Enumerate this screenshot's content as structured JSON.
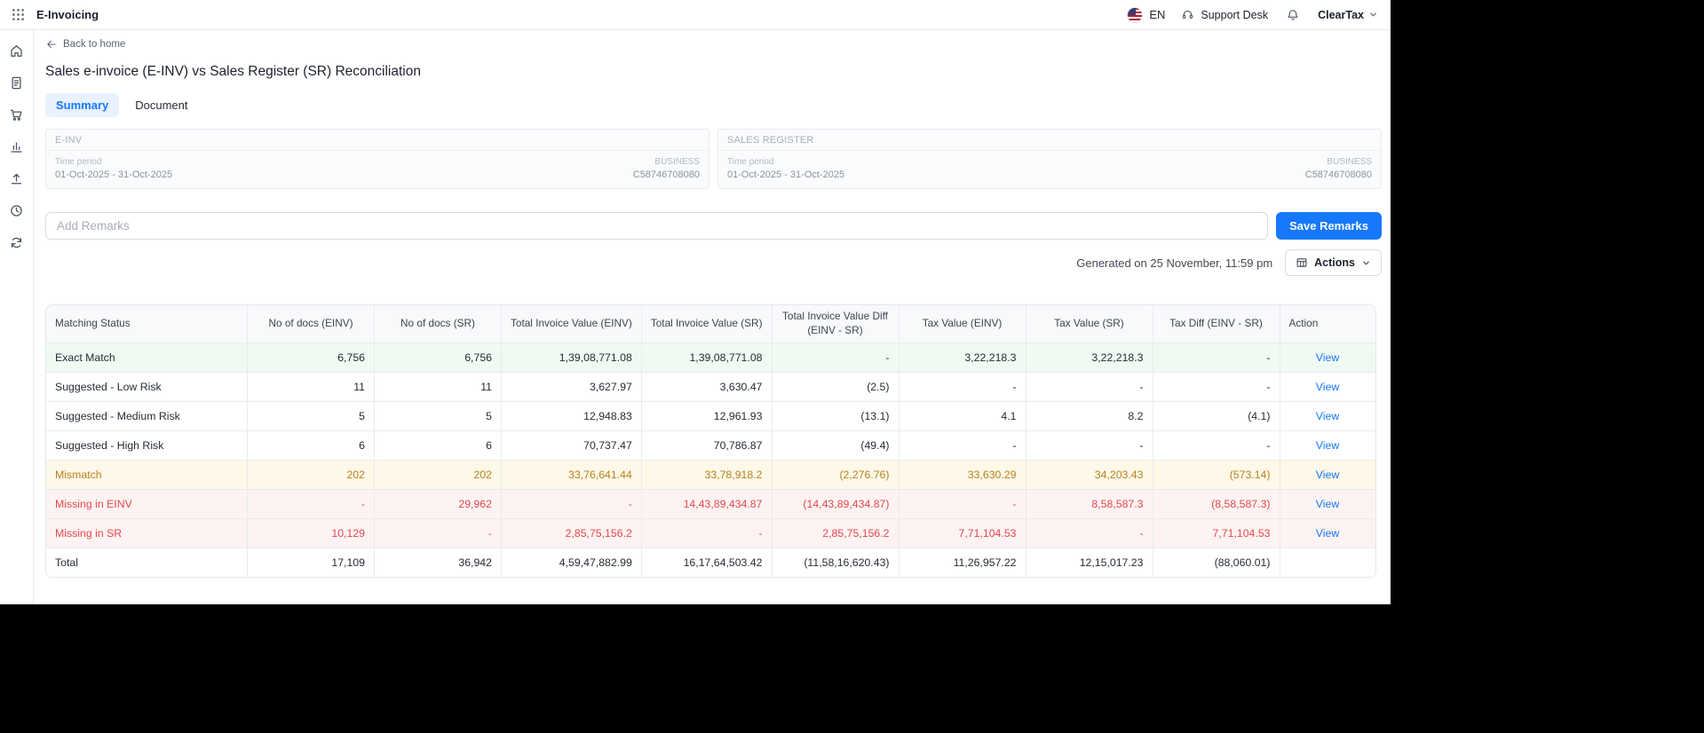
{
  "header": {
    "app_title": "E-Invoicing",
    "language": "EN",
    "support_label": "Support Desk",
    "brand": "ClearTax"
  },
  "sidebar": {
    "items": [
      {
        "icon": "home-icon"
      },
      {
        "icon": "invoice-icon"
      },
      {
        "icon": "cart-icon"
      },
      {
        "icon": "analytics-icon"
      },
      {
        "icon": "upload-icon"
      },
      {
        "icon": "history-icon"
      },
      {
        "icon": "sync-icon"
      }
    ]
  },
  "page": {
    "back_label": "Back to home",
    "title": "Sales e-invoice (E-INV) vs Sales Register (SR) Reconciliation",
    "tabs": [
      {
        "label": "Summary",
        "active": true
      },
      {
        "label": "Document",
        "active": false
      }
    ],
    "source_cards": [
      {
        "title": "E-INV",
        "time_period_label": "Time period",
        "time_period_value": "01-Oct-2025 - 31-Oct-2025",
        "business_label": "BUSINESS",
        "business_value": "C58746708080"
      },
      {
        "title": "SALES REGISTER",
        "time_period_label": "Time period",
        "time_period_value": "01-Oct-2025 - 31-Oct-2025",
        "business_label": "BUSINESS",
        "business_value": "C58746708080"
      }
    ],
    "remarks": {
      "placeholder": "Add Remarks",
      "save_label": "Save Remarks"
    },
    "generated_text": "Generated on 25 November, 11:59 pm",
    "actions_label": "Actions"
  },
  "table": {
    "columns": [
      "Matching Status",
      "No of docs (EINV)",
      "No of docs (SR)",
      "Total Invoice Value (EINV)",
      "Total Invoice Value (SR)",
      "Total Invoice Value Diff (EINV - SR)",
      "Tax Value (EINV)",
      "Tax Value (SR)",
      "Tax Diff (EINV - SR)",
      "Action"
    ],
    "rows": [
      {
        "status": "Exact Match",
        "tone": "green",
        "values": [
          "6,756",
          "6,756",
          "1,39,08,771.08",
          "1,39,08,771.08",
          "-",
          "3,22,218.3",
          "3,22,218.3",
          "-"
        ],
        "action": "View"
      },
      {
        "status": "Suggested - Low Risk",
        "tone": "none",
        "values": [
          "11",
          "11",
          "3,627.97",
          "3,630.47",
          "(2.5)",
          "-",
          "-",
          "-"
        ],
        "action": "View"
      },
      {
        "status": "Suggested - Medium Risk",
        "tone": "none",
        "values": [
          "5",
          "5",
          "12,948.83",
          "12,961.93",
          "(13.1)",
          "4.1",
          "8.2",
          "(4.1)"
        ],
        "action": "View"
      },
      {
        "status": "Suggested - High Risk",
        "tone": "none",
        "values": [
          "6",
          "6",
          "70,737.47",
          "70,786.87",
          "(49.4)",
          "-",
          "-",
          "-"
        ],
        "action": "View"
      },
      {
        "status": "Mismatch",
        "tone": "amber",
        "values": [
          "202",
          "202",
          "33,76,641.44",
          "33,78,918.2",
          "(2,276.76)",
          "33,630.29",
          "34,203.43",
          "(573.14)"
        ],
        "action": "View"
      },
      {
        "status": "Missing in EINV",
        "tone": "red",
        "values": [
          "-",
          "29,962",
          "-",
          "14,43,89,434.87",
          "(14,43,89,434.87)",
          "-",
          "8,58,587.3",
          "(8,58,587.3)"
        ],
        "action": "View"
      },
      {
        "status": "Missing in SR",
        "tone": "red",
        "values": [
          "10,129",
          "-",
          "2,85,75,156.2",
          "-",
          "2,85,75,156.2",
          "7,71,104.53",
          "-",
          "7,71,104.53"
        ],
        "action": "View"
      },
      {
        "status": "Total",
        "tone": "total",
        "values": [
          "17,109",
          "36,942",
          "4,59,47,882.99",
          "16,17,64,503.42",
          "(11,58,16,620.43)",
          "11,26,957.22",
          "12,15,017.23",
          "(88,060.01)"
        ],
        "action": ""
      }
    ]
  },
  "colors": {
    "accent_blue": "#1678fb",
    "active_tab_bg": "#e8f1fe",
    "exact_match_bg": "#f0faf3",
    "mismatch_bg": "#fdf8e7",
    "mismatch_text": "#b7821f",
    "missing_bg": "#fcf3f2",
    "missing_text": "#e5484d"
  }
}
